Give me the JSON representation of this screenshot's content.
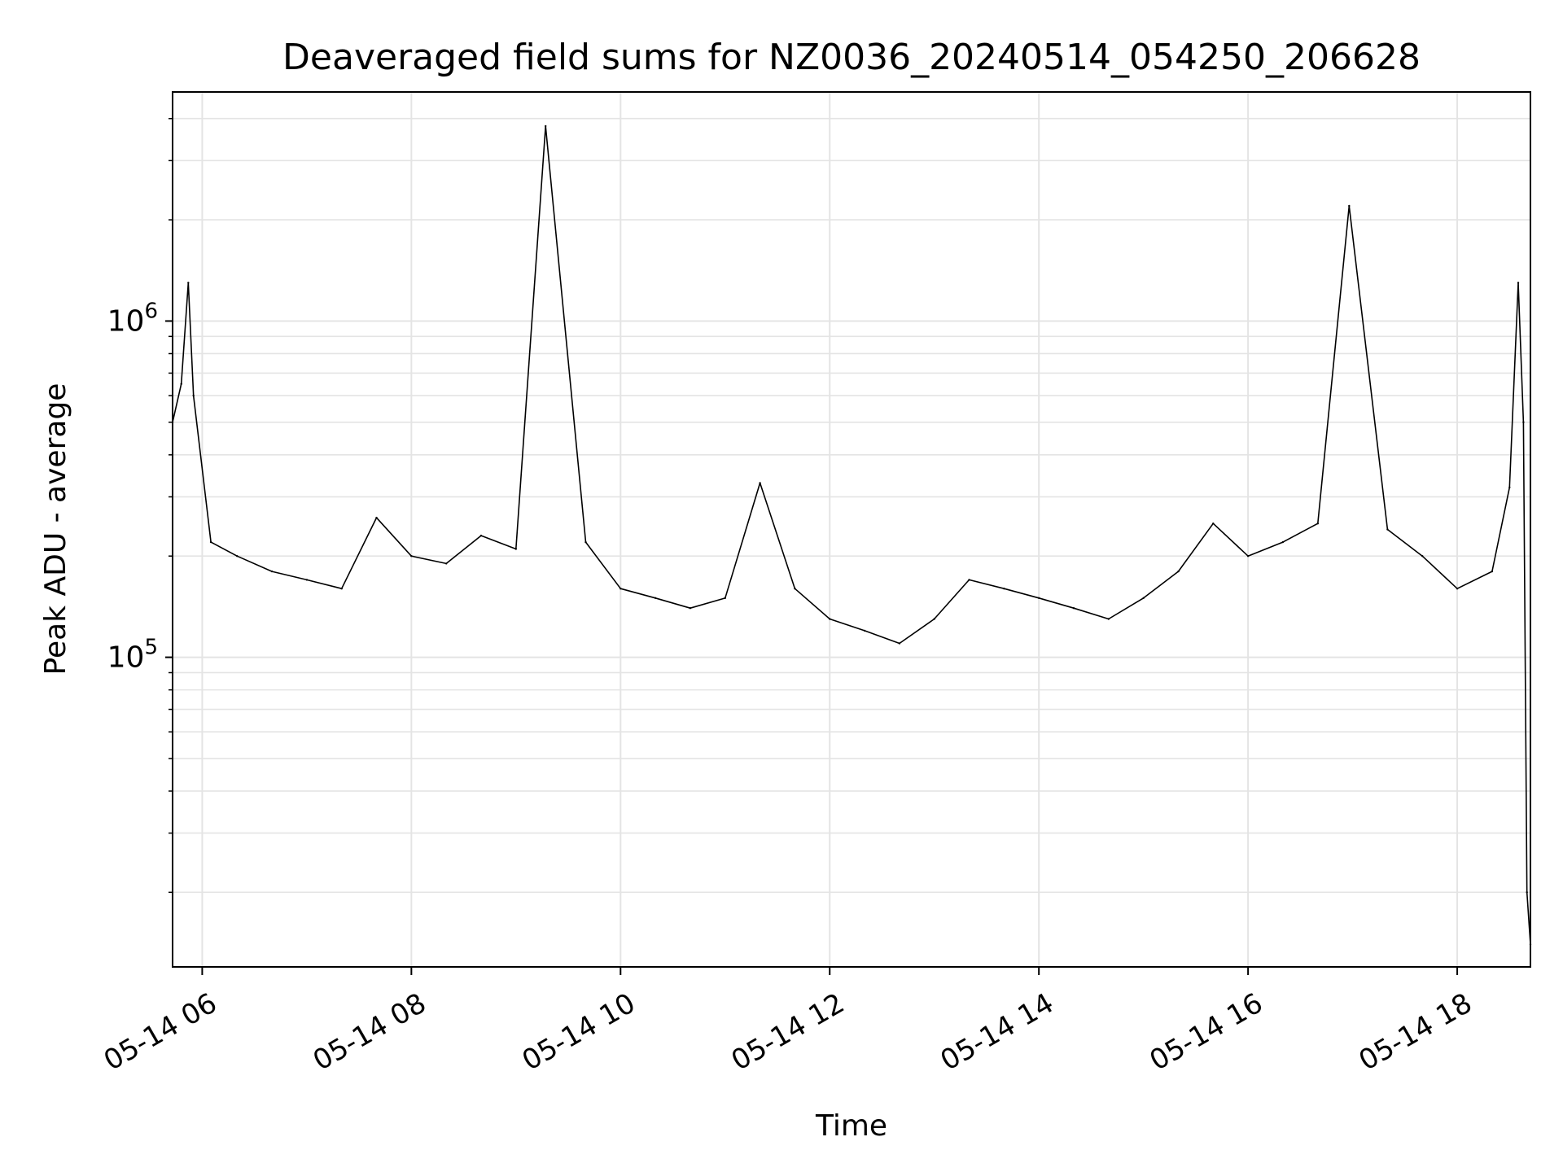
{
  "chart_data": {
    "type": "line",
    "title": "Deaveraged field sums for NZ0036_20240514_054250_206628",
    "xlabel": "Time",
    "ylabel": "Peak ADU - average",
    "y_scale": "log",
    "ylim": [
      12000,
      4800000
    ],
    "xlim": [
      "2024-05-14 05:43",
      "2024-05-14 18:42"
    ],
    "x_ticks": [
      {
        "value": "2024-05-14 06:00",
        "label": "05-14 06"
      },
      {
        "value": "2024-05-14 08:00",
        "label": "05-14 08"
      },
      {
        "value": "2024-05-14 10:00",
        "label": "05-14 10"
      },
      {
        "value": "2024-05-14 12:00",
        "label": "05-14 12"
      },
      {
        "value": "2024-05-14 14:00",
        "label": "05-14 14"
      },
      {
        "value": "2024-05-14 16:00",
        "label": "05-14 16"
      },
      {
        "value": "2024-05-14 18:00",
        "label": "05-14 18"
      }
    ],
    "y_ticks": [
      {
        "value": 100000,
        "base": "10",
        "exp": "5"
      },
      {
        "value": 1000000,
        "base": "10",
        "exp": "6"
      }
    ],
    "grid": true,
    "line_color": "#000000",
    "series": [
      {
        "x": [
          "2024-05-14 05:43",
          "2024-05-14 05:48",
          "2024-05-14 05:52",
          "2024-05-14 05:55",
          "2024-05-14 06:05",
          "2024-05-14 06:20",
          "2024-05-14 06:40",
          "2024-05-14 07:00",
          "2024-05-14 07:20",
          "2024-05-14 07:40",
          "2024-05-14 08:00",
          "2024-05-14 08:20",
          "2024-05-14 08:40",
          "2024-05-14 09:00",
          "2024-05-14 09:17",
          "2024-05-14 09:40",
          "2024-05-14 10:00",
          "2024-05-14 10:20",
          "2024-05-14 10:40",
          "2024-05-14 11:00",
          "2024-05-14 11:20",
          "2024-05-14 11:40",
          "2024-05-14 12:00",
          "2024-05-14 12:20",
          "2024-05-14 12:40",
          "2024-05-14 13:00",
          "2024-05-14 13:20",
          "2024-05-14 13:40",
          "2024-05-14 14:00",
          "2024-05-14 14:20",
          "2024-05-14 14:40",
          "2024-05-14 15:00",
          "2024-05-14 15:20",
          "2024-05-14 15:40",
          "2024-05-14 16:00",
          "2024-05-14 16:20",
          "2024-05-14 16:40",
          "2024-05-14 16:58",
          "2024-05-14 17:20",
          "2024-05-14 17:40",
          "2024-05-14 18:00",
          "2024-05-14 18:20",
          "2024-05-14 18:30",
          "2024-05-14 18:35",
          "2024-05-14 18:38",
          "2024-05-14 18:40",
          "2024-05-14 18:42"
        ],
        "y": [
          500000,
          650000,
          1300000,
          600000,
          220000,
          200000,
          180000,
          170000,
          160000,
          260000,
          200000,
          190000,
          230000,
          210000,
          3800000,
          220000,
          160000,
          150000,
          140000,
          150000,
          330000,
          160000,
          130000,
          120000,
          110000,
          130000,
          170000,
          160000,
          150000,
          140000,
          130000,
          150000,
          180000,
          250000,
          200000,
          220000,
          250000,
          2200000,
          240000,
          200000,
          160000,
          180000,
          320000,
          1300000,
          500000,
          20000,
          14000
        ]
      }
    ]
  }
}
